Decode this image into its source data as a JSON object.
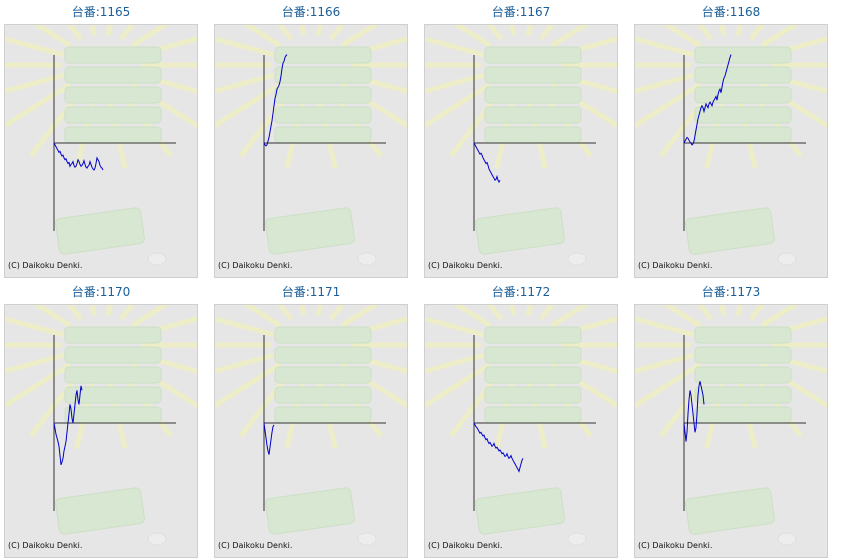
{
  "copyright": "(C) Daikoku Denki.",
  "colors": {
    "title": "#1a5e9a",
    "line": "#0000cc",
    "axis": "#333333",
    "panel_bg": "#e6e6e6"
  },
  "chart_data": [
    {
      "type": "line",
      "title": "台番:1165",
      "y": [
        0,
        -2,
        -4,
        -6,
        -8,
        -10,
        -9,
        -12,
        -14,
        -13,
        -16,
        -18,
        -17,
        -20,
        -22,
        -21,
        -25,
        -23,
        -22,
        -20,
        -24,
        -26,
        -25,
        -22,
        -18,
        -20,
        -23,
        -25,
        -24,
        -22,
        -19,
        -23,
        -26,
        -27,
        -25,
        -24,
        -20,
        -23,
        -26,
        -28,
        -29,
        -27,
        -22,
        -16,
        -18,
        -20,
        -24,
        -26,
        -27,
        -29
      ]
    },
    {
      "type": "line",
      "title": "台番:1166",
      "y": [
        0,
        -2,
        -3,
        -2,
        2,
        6,
        12,
        18,
        24,
        32,
        40,
        48,
        52,
        58,
        60,
        62,
        66,
        72,
        80,
        86,
        88,
        92,
        94,
        95
      ]
    },
    {
      "type": "line",
      "title": "台番:1167",
      "y": [
        0,
        -2,
        -4,
        -6,
        -8,
        -10,
        -12,
        -11,
        -13,
        -16,
        -18,
        -20,
        -22,
        -21,
        -24,
        -28,
        -30,
        -32,
        -34,
        -36,
        -38,
        -40,
        -39,
        -36,
        -40,
        -42,
        -40
      ]
    },
    {
      "type": "line",
      "title": "台番:1168",
      "y": [
        0,
        2,
        4,
        6,
        5,
        3,
        1,
        0,
        -2,
        -1,
        2,
        8,
        14,
        20,
        26,
        30,
        34,
        38,
        40,
        38,
        34,
        38,
        42,
        40,
        38,
        42,
        44,
        42,
        40,
        44,
        46,
        48,
        50,
        46,
        52,
        56,
        58,
        54,
        60,
        66,
        70,
        72,
        76,
        80,
        84,
        88,
        92,
        95
      ]
    },
    {
      "type": "line",
      "title": "台番:1170",
      "y": [
        0,
        -6,
        -12,
        -16,
        -20,
        -25,
        -35,
        -45,
        -42,
        -38,
        -30,
        -25,
        -20,
        -10,
        0,
        10,
        20,
        15,
        5,
        0,
        10,
        20,
        30,
        35,
        25,
        20,
        30,
        40,
        35
      ]
    },
    {
      "type": "line",
      "title": "台番:1171",
      "y": [
        0,
        -8,
        -16,
        -24,
        -30,
        -34,
        -26,
        -18,
        -10,
        -4,
        -2
      ]
    },
    {
      "type": "line",
      "title": "台番:1172",
      "y": [
        0,
        -2,
        -4,
        -5,
        -7,
        -9,
        -11,
        -10,
        -12,
        -14,
        -13,
        -16,
        -18,
        -17,
        -20,
        -22,
        -21,
        -23,
        -25,
        -24,
        -22,
        -25,
        -27,
        -26,
        -28,
        -30,
        -29,
        -31,
        -33,
        -32,
        -34,
        -36,
        -35,
        -33,
        -36,
        -38,
        -37,
        -35,
        -38,
        -40,
        -42,
        -44,
        -46,
        -48,
        -50,
        -52,
        -48,
        -44,
        -40,
        -38
      ]
    },
    {
      "type": "line",
      "title": "台番:1173",
      "y": [
        0,
        -10,
        -20,
        -10,
        10,
        25,
        35,
        30,
        20,
        10,
        0,
        -10,
        -5,
        10,
        30,
        40,
        45,
        40,
        35,
        30,
        20
      ]
    }
  ]
}
